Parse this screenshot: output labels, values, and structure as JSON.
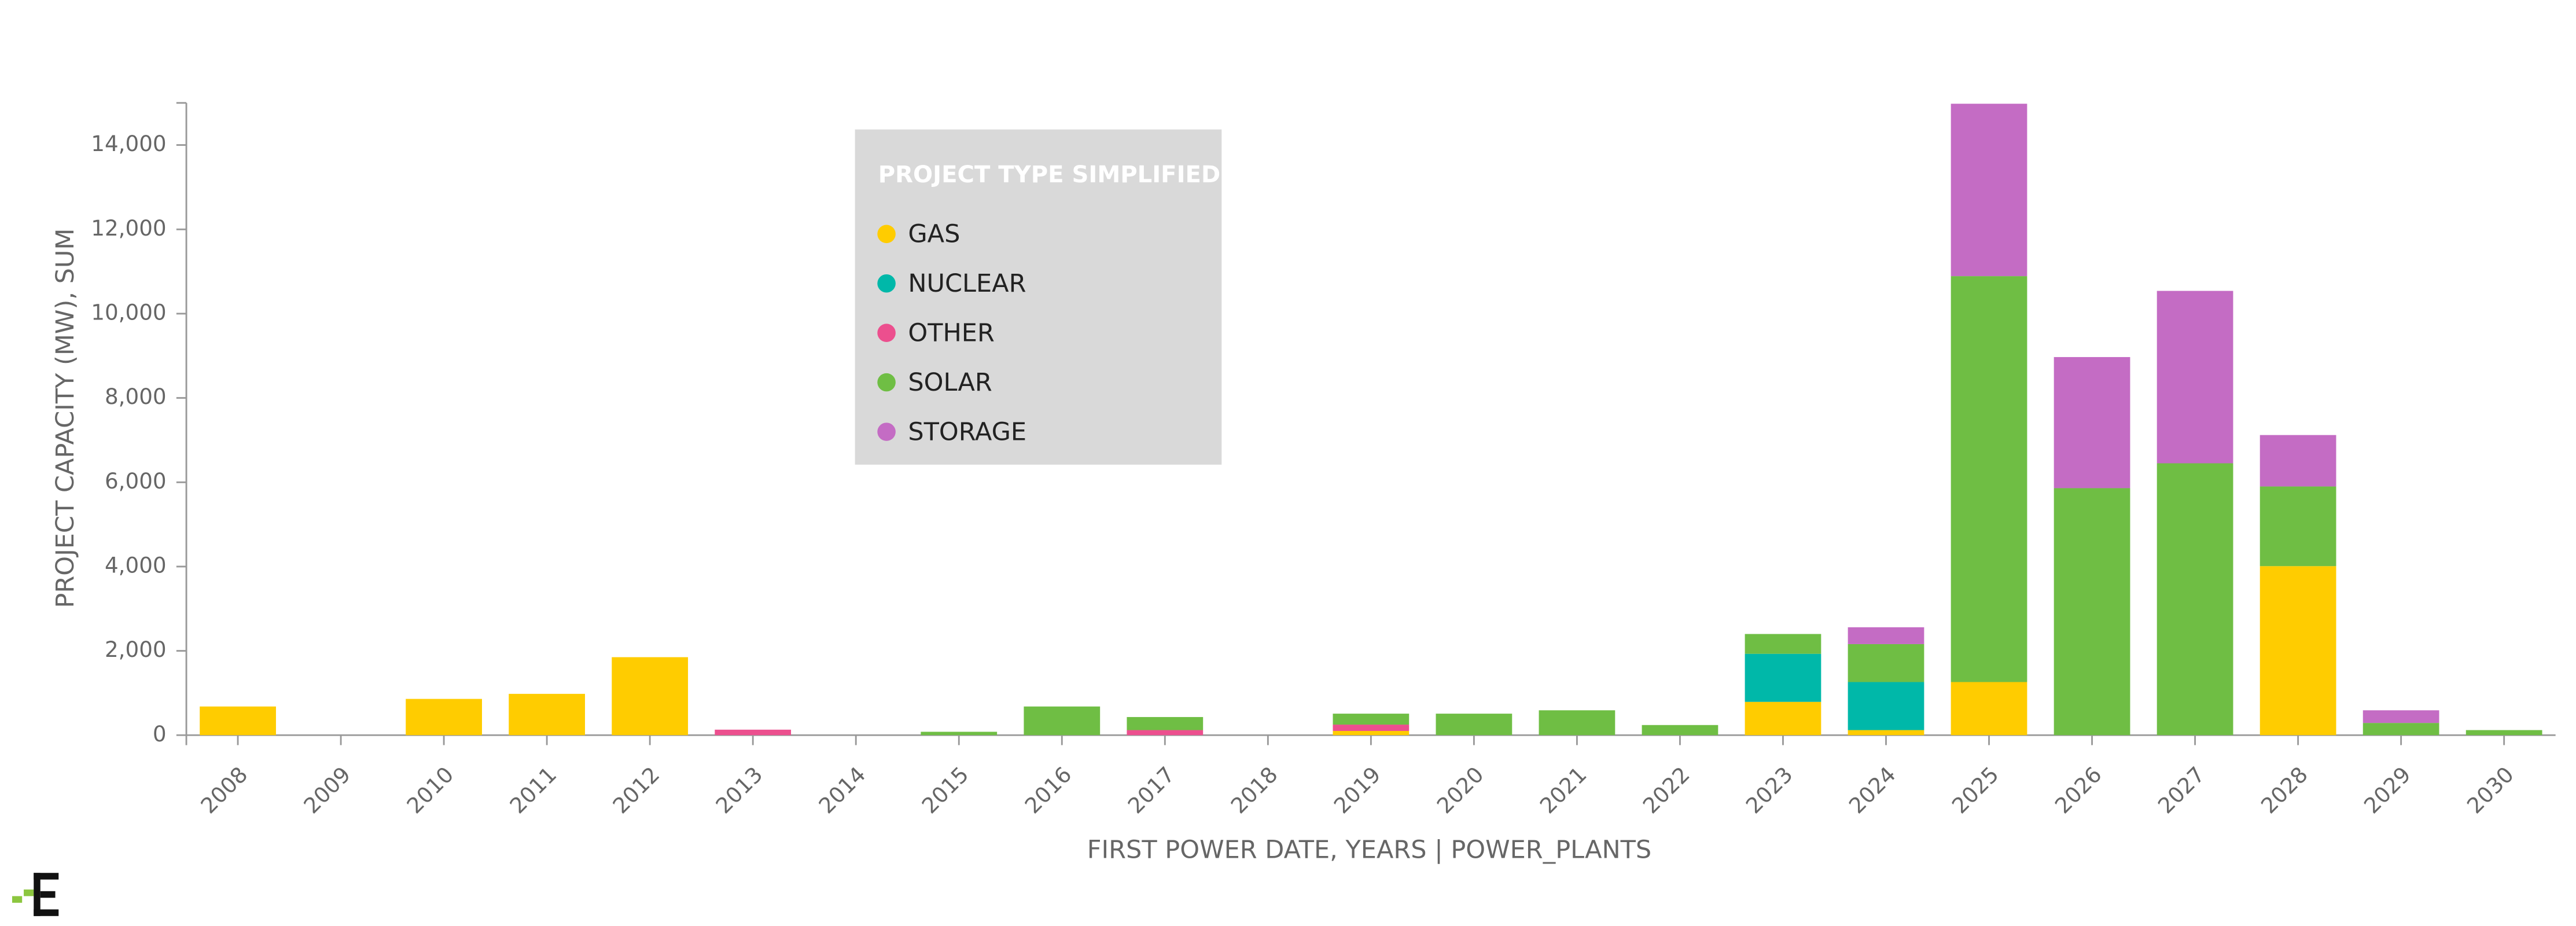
{
  "chart_data": {
    "type": "stacked_bar",
    "x_label": "FIRST POWER DATE, YEARS | POWER_PLANTS",
    "y_label": "PROJECT CAPACITY (MW), SUM",
    "legend_title": "PROJECT TYPE SIMPLIFIED",
    "categories": [
      "2008",
      "2009",
      "2010",
      "2011",
      "2012",
      "2013",
      "2014",
      "2015",
      "2016",
      "2017",
      "2018",
      "2019",
      "2020",
      "2021",
      "2022",
      "2023",
      "2024",
      "2025",
      "2026",
      "2027",
      "2028",
      "2029",
      "2030"
    ],
    "series": [
      {
        "name": "GAS",
        "color": "#ffcc00",
        "values": [
          680,
          0,
          860,
          980,
          1850,
          0,
          0,
          0,
          0,
          0,
          0,
          100,
          0,
          0,
          0,
          790,
          120,
          1260,
          0,
          0,
          4010,
          0,
          0
        ]
      },
      {
        "name": "NUCLEAR",
        "color": "#00b8a9",
        "values": [
          0,
          0,
          0,
          0,
          0,
          0,
          0,
          0,
          0,
          0,
          0,
          0,
          0,
          0,
          0,
          1140,
          1140,
          0,
          0,
          0,
          0,
          0,
          0
        ]
      },
      {
        "name": "OTHER",
        "color": "#ec4f8e",
        "values": [
          0,
          0,
          0,
          0,
          0,
          130,
          0,
          0,
          0,
          120,
          0,
          150,
          0,
          0,
          0,
          0,
          0,
          0,
          0,
          0,
          0,
          0,
          0
        ]
      },
      {
        "name": "SOLAR",
        "color": "#6fbe44",
        "values": [
          0,
          0,
          0,
          0,
          0,
          0,
          0,
          80,
          680,
          310,
          0,
          260,
          510,
          590,
          240,
          470,
          900,
          9630,
          5860,
          6450,
          1890,
          290,
          120
        ]
      },
      {
        "name": "STORAGE",
        "color": "#c46cc4",
        "values": [
          0,
          0,
          0,
          0,
          0,
          0,
          0,
          0,
          0,
          0,
          0,
          0,
          0,
          0,
          0,
          0,
          400,
          4090,
          3110,
          4090,
          1220,
          300,
          0
        ]
      }
    ],
    "ylim": [
      0,
      15000
    ],
    "yticks": [
      0,
      {
        "value": 2000,
        "label": "2,000"
      },
      {
        "value": 4000,
        "label": "4,000"
      },
      {
        "value": 6000,
        "label": "6,000"
      },
      {
        "value": 8000,
        "label": "8,000"
      },
      {
        "value": 10000,
        "label": "10,000"
      },
      {
        "value": 12000,
        "label": "12,000"
      },
      {
        "value": 14000,
        "label": "14,000"
      }
    ],
    "legend_position": "top-center"
  }
}
